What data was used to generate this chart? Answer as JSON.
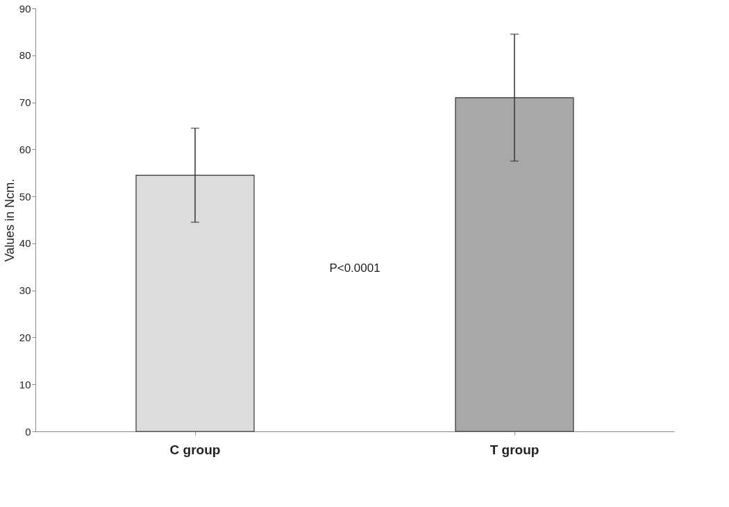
{
  "chart_data": {
    "type": "bar",
    "ylabel": "Values in Ncm.",
    "categories": [
      "C group",
      "T group"
    ],
    "values": [
      54.5,
      71
    ],
    "colors": [
      "#dcdcdc",
      "#a8a8a8"
    ],
    "errors": [
      10,
      13.5
    ],
    "ylim": [
      0,
      90
    ],
    "yticks": [
      0,
      10,
      20,
      30,
      40,
      50,
      60,
      70,
      80,
      90
    ],
    "grid": false,
    "annotations": [
      "P<0.0001"
    ]
  }
}
